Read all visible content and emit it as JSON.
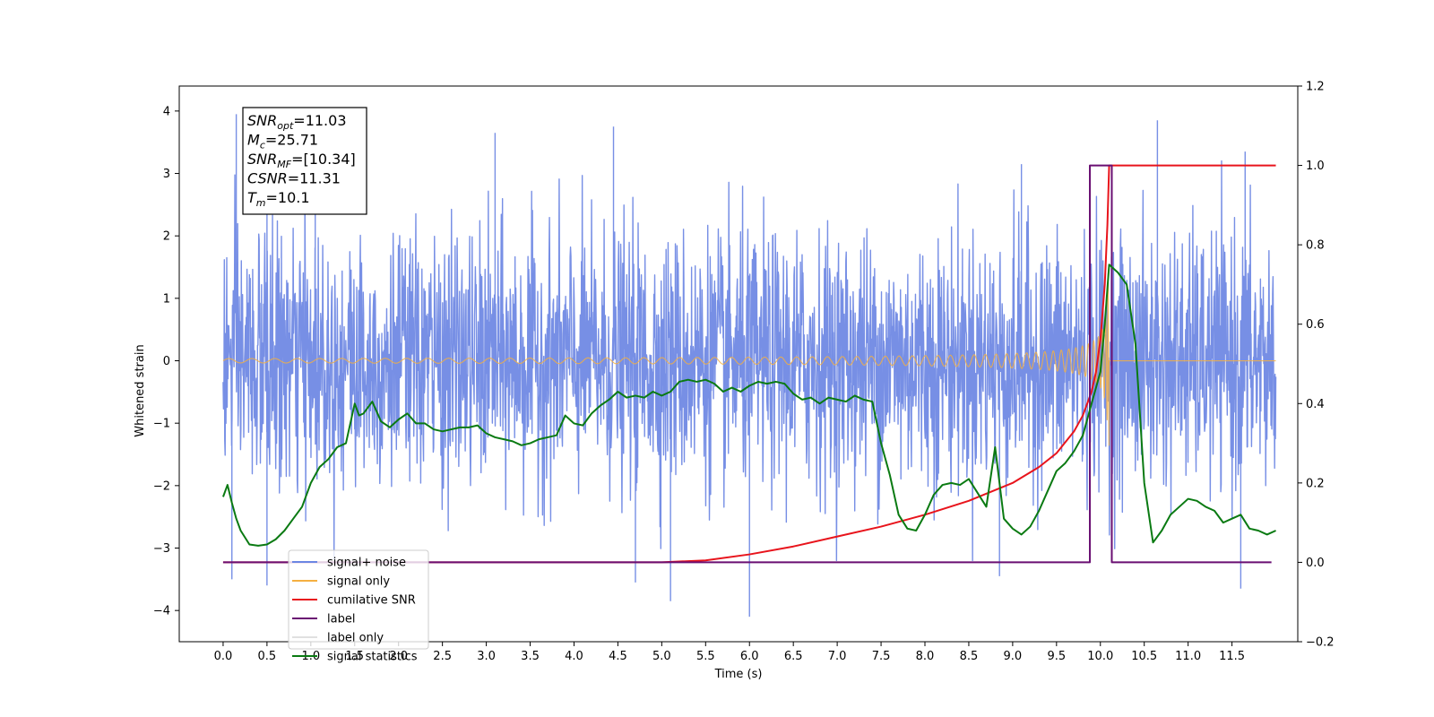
{
  "chart_data": {
    "type": "line",
    "title": "",
    "xlabel": "Time (s)",
    "ylabel": "Whitened strain",
    "xlim": [
      -0.5,
      12.25
    ],
    "ylim": [
      -4.5,
      4.4
    ],
    "y2lim": [
      -0.2,
      1.2
    ],
    "grid": false,
    "legend_position": "lower-left",
    "x_ticks": [
      0.0,
      0.5,
      1.0,
      1.5,
      2.0,
      2.5,
      3.0,
      3.5,
      4.0,
      4.5,
      5.0,
      5.5,
      6.0,
      6.5,
      7.0,
      7.5,
      8.0,
      8.5,
      9.0,
      9.5,
      10.0,
      10.5,
      11.0,
      11.5
    ],
    "x_tick_labels": [
      "0.0",
      "0.5",
      "1.0",
      "1.5",
      "2.0",
      "2.5",
      "3.0",
      "3.5",
      "4.0",
      "4.5",
      "5.0",
      "5.5",
      "6.0",
      "6.5",
      "7.0",
      "7.5",
      "8.0",
      "8.5",
      "9.0",
      "9.5",
      "10.0",
      "10.5",
      "11.0",
      "11.5"
    ],
    "y_ticks": [
      -4,
      -3,
      -2,
      -1,
      0,
      1,
      2,
      3,
      4
    ],
    "y_tick_labels": [
      "−4",
      "−3",
      "−2",
      "−1",
      "0",
      "1",
      "2",
      "3",
      "4"
    ],
    "y2_ticks": [
      -0.2,
      0.0,
      0.2,
      0.4,
      0.6,
      0.8,
      1.0,
      1.2
    ],
    "y2_tick_labels": [
      "−0.2",
      "0.0",
      "0.2",
      "0.4",
      "0.6",
      "0.8",
      "1.0",
      "1.2"
    ],
    "annotation": {
      "lines": [
        {
          "base": "SNR",
          "sub": "opt",
          "value": "=11.03"
        },
        {
          "base": "M",
          "sub": "c",
          "value": "=25.71"
        },
        {
          "base": "SNR",
          "sub": "MF",
          "value": "=[10.34]"
        },
        {
          "base": "CSNR",
          "sub": "",
          "value": "=11.31"
        },
        {
          "base": "T",
          "sub": "m",
          "value": "=10.1"
        }
      ]
    },
    "series": [
      {
        "name": "signal+ noise",
        "axis": "left",
        "color": "#6b86e3",
        "kind": "noise_envelope",
        "x_range": [
          0.0,
          12.0
        ],
        "typical_amplitude": [
          -2.0,
          2.0
        ],
        "peaks": [
          {
            "x": 0.15,
            "y": 3.95
          },
          {
            "x": 0.5,
            "y": 3.3
          },
          {
            "x": 1.05,
            "y": 3.5
          },
          {
            "x": 3.1,
            "y": 3.65
          },
          {
            "x": 4.45,
            "y": 3.75
          },
          {
            "x": 9.1,
            "y": 3.15
          },
          {
            "x": 10.65,
            "y": 3.85
          },
          {
            "x": 11.65,
            "y": 3.35
          }
        ],
        "troughs": [
          {
            "x": 0.1,
            "y": -3.5
          },
          {
            "x": 0.5,
            "y": -3.6
          },
          {
            "x": 4.7,
            "y": -3.55
          },
          {
            "x": 5.1,
            "y": -3.85
          },
          {
            "x": 6.0,
            "y": -4.1
          },
          {
            "x": 8.85,
            "y": -3.45
          },
          {
            "x": 11.6,
            "y": -3.65
          }
        ]
      },
      {
        "name": "signal only",
        "axis": "left",
        "color": "#f5b041",
        "kind": "chirp",
        "x_range": [
          0.0,
          12.0
        ],
        "merger_time": 10.1,
        "peak_amplitude": 1.4,
        "post_merger_amplitude": 0.0
      },
      {
        "name": "cumilative SNR",
        "axis": "right",
        "color": "#e8141c",
        "x": [
          0.0,
          5.0,
          5.5,
          6.0,
          6.5,
          7.0,
          7.5,
          8.0,
          8.5,
          9.0,
          9.3,
          9.5,
          9.7,
          9.8,
          9.9,
          9.95,
          10.0,
          10.05,
          10.08,
          10.1,
          10.15,
          12.0
        ],
        "values": [
          0.0,
          0.0,
          0.005,
          0.02,
          0.04,
          0.065,
          0.09,
          0.12,
          0.155,
          0.2,
          0.24,
          0.275,
          0.33,
          0.37,
          0.43,
          0.48,
          0.56,
          0.7,
          0.85,
          1.0,
          1.0,
          1.0
        ]
      },
      {
        "name": "label",
        "axis": "right",
        "color": "#6a0f72",
        "x": [
          0.0,
          9.88,
          9.88,
          10.0,
          10.0,
          10.13,
          10.13,
          11.95
        ],
        "values": [
          0.0,
          0.0,
          1.0,
          1.0,
          1.0,
          1.0,
          0.0,
          0.0
        ]
      },
      {
        "name": "label only",
        "axis": "right",
        "color": "#e0e0e0",
        "x": [],
        "values": []
      },
      {
        "name": "signal statistics",
        "axis": "right",
        "color": "#0a7a12",
        "x": [
          0.0,
          0.05,
          0.1,
          0.15,
          0.2,
          0.3,
          0.4,
          0.5,
          0.6,
          0.7,
          0.8,
          0.9,
          1.0,
          1.1,
          1.2,
          1.3,
          1.4,
          1.5,
          1.55,
          1.6,
          1.7,
          1.8,
          1.9,
          2.0,
          2.1,
          2.2,
          2.3,
          2.4,
          2.5,
          2.6,
          2.7,
          2.8,
          2.9,
          3.0,
          3.1,
          3.2,
          3.3,
          3.4,
          3.5,
          3.6,
          3.7,
          3.8,
          3.9,
          4.0,
          4.1,
          4.2,
          4.3,
          4.4,
          4.5,
          4.6,
          4.7,
          4.8,
          4.9,
          5.0,
          5.1,
          5.2,
          5.3,
          5.4,
          5.5,
          5.6,
          5.7,
          5.8,
          5.9,
          6.0,
          6.1,
          6.2,
          6.3,
          6.4,
          6.5,
          6.6,
          6.7,
          6.8,
          6.9,
          7.0,
          7.1,
          7.2,
          7.3,
          7.4,
          7.5,
          7.6,
          7.7,
          7.8,
          7.9,
          8.0,
          8.1,
          8.2,
          8.3,
          8.4,
          8.5,
          8.6,
          8.7,
          8.8,
          8.9,
          9.0,
          9.1,
          9.2,
          9.3,
          9.4,
          9.5,
          9.6,
          9.7,
          9.8,
          9.9,
          10.0,
          10.05,
          10.1,
          10.2,
          10.3,
          10.4,
          10.5,
          10.6,
          10.7,
          10.8,
          10.9,
          11.0,
          11.1,
          11.2,
          11.3,
          11.4,
          11.5,
          11.6,
          11.7,
          11.8,
          11.9,
          12.0
        ],
        "values": [
          0.165,
          0.195,
          0.15,
          0.11,
          0.08,
          0.045,
          0.042,
          0.045,
          0.058,
          0.08,
          0.11,
          0.14,
          0.2,
          0.24,
          0.26,
          0.29,
          0.3,
          0.4,
          0.37,
          0.375,
          0.405,
          0.355,
          0.34,
          0.36,
          0.375,
          0.35,
          0.35,
          0.335,
          0.33,
          0.335,
          0.34,
          0.34,
          0.345,
          0.325,
          0.315,
          0.31,
          0.305,
          0.295,
          0.3,
          0.31,
          0.315,
          0.32,
          0.37,
          0.35,
          0.345,
          0.375,
          0.395,
          0.41,
          0.43,
          0.415,
          0.42,
          0.415,
          0.43,
          0.42,
          0.43,
          0.455,
          0.46,
          0.455,
          0.46,
          0.45,
          0.43,
          0.44,
          0.43,
          0.445,
          0.455,
          0.45,
          0.455,
          0.45,
          0.425,
          0.41,
          0.415,
          0.4,
          0.415,
          0.41,
          0.405,
          0.42,
          0.41,
          0.405,
          0.3,
          0.22,
          0.12,
          0.085,
          0.08,
          0.12,
          0.17,
          0.195,
          0.2,
          0.195,
          0.21,
          0.175,
          0.14,
          0.29,
          0.11,
          0.085,
          0.07,
          0.09,
          0.13,
          0.18,
          0.23,
          0.25,
          0.28,
          0.32,
          0.4,
          0.48,
          0.6,
          0.75,
          0.73,
          0.7,
          0.55,
          0.2,
          0.05,
          0.08,
          0.12,
          0.14,
          0.16,
          0.155,
          0.14,
          0.13,
          0.1,
          0.11,
          0.12,
          0.085,
          0.08,
          0.07,
          0.08
        ]
      }
    ]
  }
}
